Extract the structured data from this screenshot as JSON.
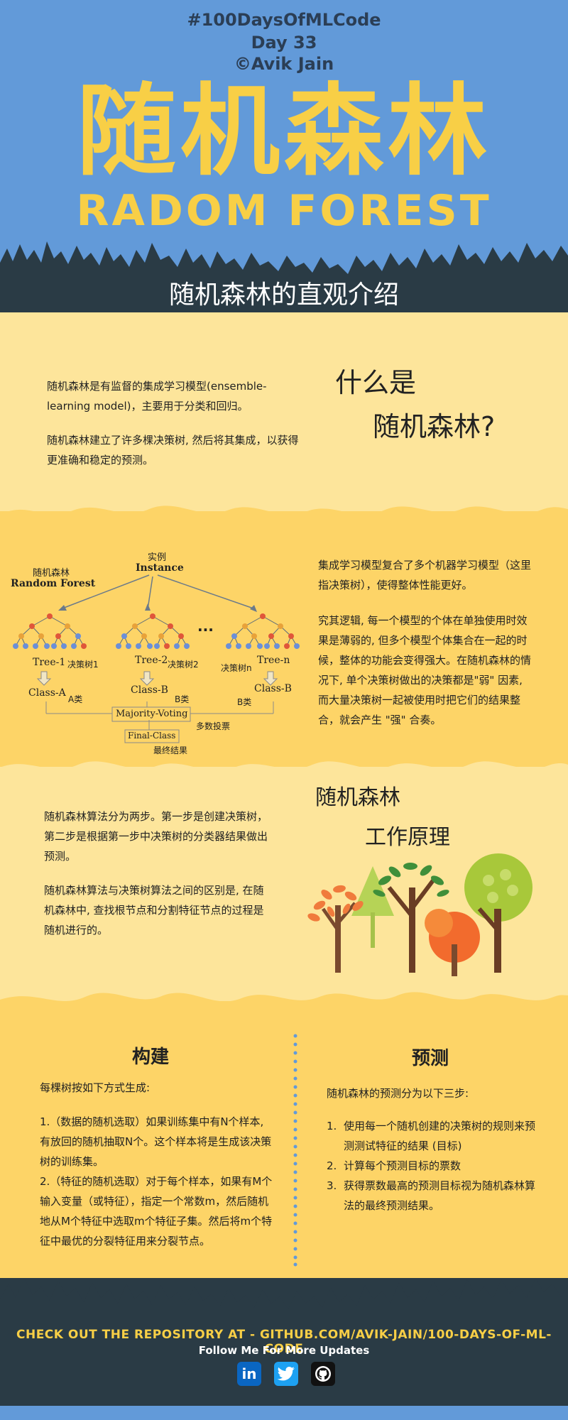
{
  "header": {
    "hashtag": "#100DaysOfMLCode",
    "day": "Day 33",
    "author": "©Avik Jain",
    "title_cn": "随机森林",
    "title_en": "RADOM FOREST",
    "subtitle": "随机森林的直观介绍"
  },
  "section1": {
    "heading_line1": "什么是",
    "heading_line2": "随机森林?",
    "para1": "随机森林是有监督的集成学习模型(ensemble-learning model)，主要用于分类和回归。",
    "para2": "随机森林建立了许多棵决策树, 然后将其集成，以获得更准确和稳定的预测。"
  },
  "diagram": {
    "label_cn": "随机森林",
    "label_en": "Random Forest",
    "instance_cn": "实例",
    "instance_en": "Instance",
    "dots": "...",
    "trees": [
      {
        "name": "Tree-1",
        "cn": "决策树1",
        "cls": "Class-A",
        "cls_cn": "A类"
      },
      {
        "name": "Tree-2",
        "cn": "决策树2",
        "cls": "Class-B",
        "cls_cn": "B类"
      },
      {
        "name": "Tree-n",
        "cn": "决策树n",
        "cls": "Class-B",
        "cls_cn": "B类"
      }
    ],
    "voting": "Majority-Voting",
    "voting_cn": "多数投票",
    "final": "Final-Class",
    "final_cn": "最终结果"
  },
  "section2": {
    "para1": "集成学习模型复合了多个机器学习模型（这里指决策树），使得整体性能更好。",
    "para2": "究其逻辑, 每一个模型的个体在单独使用时效果是薄弱的, 但多个模型个体集合在一起的时候，整体的功能会变得强大。在随机森林的情况下, 单个决策树做出的决策都是\"弱\" 因素, 而大量决策树一起被使用时把它们的结果整合，就会产生 \"强\" 合奏。"
  },
  "section3": {
    "heading_line1": "随机森林",
    "heading_line2": "工作原理",
    "para1": "随机森林算法分为两步。第一步是创建决策树，第二步是根据第一步中决策树的分类器结果做出预测。",
    "para2": "随机森林算法与决策树算法之间的区别是, 在随机森林中, 查找根节点和分割特征节点的过程是随机进行的。"
  },
  "section4": {
    "left_title": "构建",
    "left_intro": "每棵树按如下方式生成:",
    "left_item1": "1.（数据的随机选取）如果训练集中有N个样本, 有放回的随机抽取N个。这个样本将是生成该决策树的训练集。",
    "left_item2": "2.（特征的随机选取）对于每个样本，如果有M个输入变量（或特征），指定一个常数m，然后随机地从M个特征中选取m个特征子集。然后将m个特征中最优的分裂特征用来分裂节点。",
    "right_title": "预测",
    "right_intro": "随机森林的预测分为以下三步:",
    "right_items": [
      {
        "num": "1.",
        "text": "使用每一个随机创建的决策树的规则来预测测试特征的结果 (目标)"
      },
      {
        "num": "2.",
        "text": "计算每个预测目标的票数"
      },
      {
        "num": "3.",
        "text": "获得票数最高的预测目标视为随机森林算法的最终预测结果。"
      }
    ]
  },
  "footer": {
    "repo": "CHECK OUT THE REPOSITORY AT - GITHUB.COM/AVIK-JAIN/100-DAYS-OF-ML-CODE",
    "follow": "Follow Me For More Updates",
    "linkedin": "in",
    "icons": [
      "linkedin-icon",
      "twitter-icon",
      "github-icon"
    ]
  },
  "colors": {
    "header_bg": "#629ad9",
    "title_yellow": "#f8cf46",
    "dark": "#2a3b45",
    "light_yellow": "#fde59b",
    "mid_yellow": "#fdd467"
  }
}
